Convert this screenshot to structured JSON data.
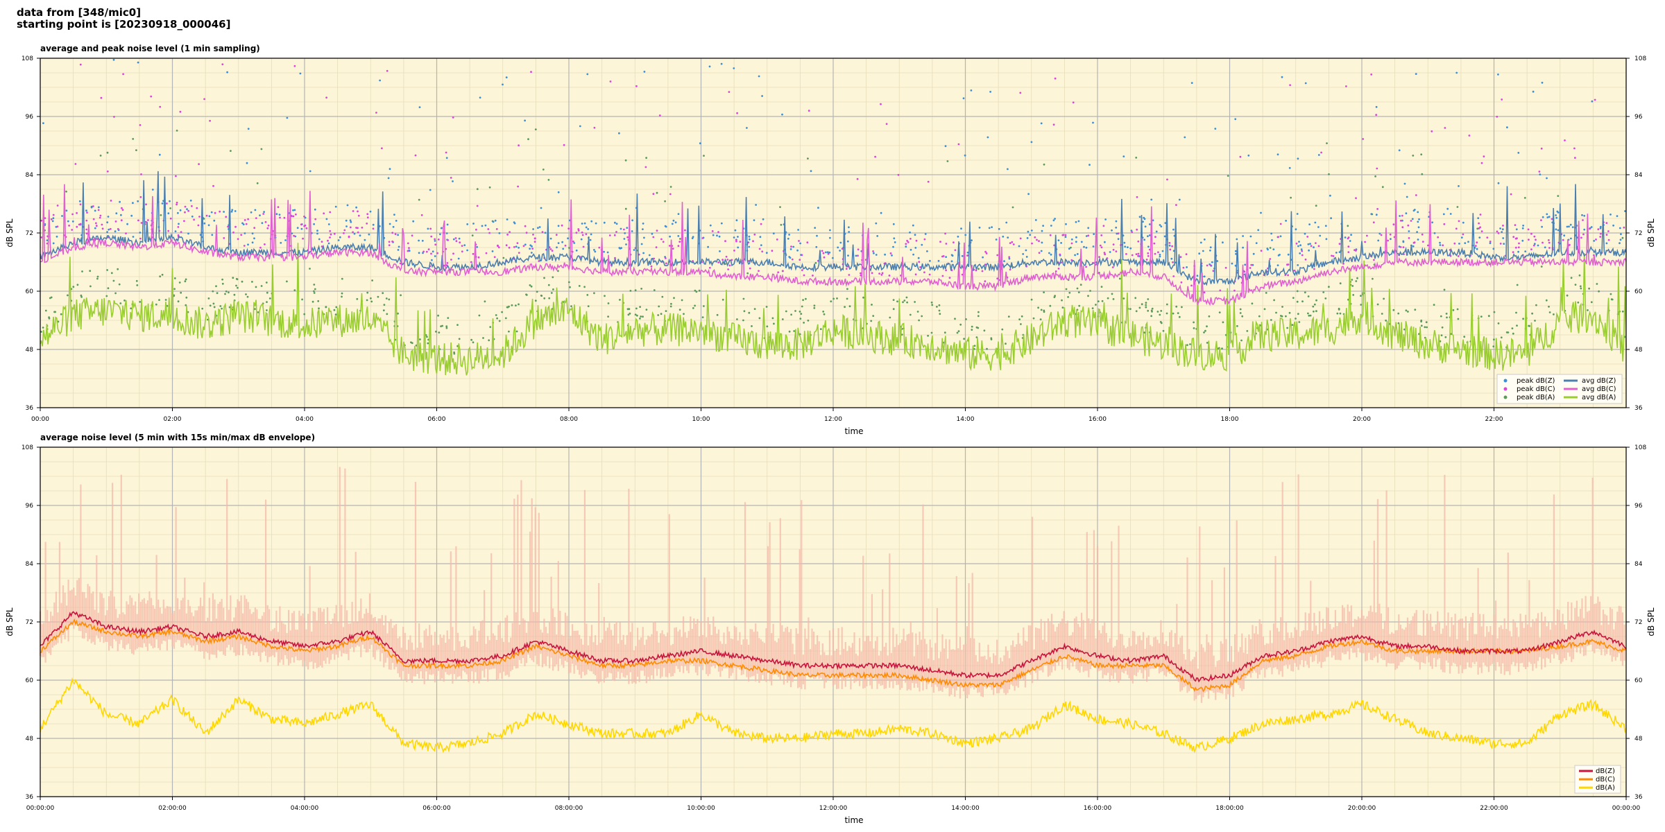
{
  "header": {
    "line1": "data from [348/mic0]",
    "line2": "starting point is [20230918_000046]"
  },
  "chart_data": [
    {
      "type": "line",
      "title": "average and peak noise level (1 min sampling)",
      "xlabel": "time",
      "ylabel": "dB SPL",
      "ylim": [
        36,
        108
      ],
      "yticks": [
        36,
        48,
        60,
        72,
        84,
        96,
        108
      ],
      "x_range_hours": [
        0,
        24
      ],
      "xtick_labels": [
        "00:00",
        "02:00",
        "04:00",
        "06:00",
        "08:00",
        "10:00",
        "12:00",
        "14:00",
        "16:00",
        "18:00",
        "20:00",
        "22:00"
      ],
      "grid": true,
      "legend_position": "lower-right",
      "colors": {
        "background": "#fdf5d8",
        "zline": "#4a7fb0",
        "cline": "#e060d0",
        "aline": "#9acd32",
        "peakz": "#3a8fd8",
        "peakc": "#dd44dd",
        "peaka": "#5a9a5a"
      },
      "legend": [
        "peak dB(Z)",
        "peak dB(C)",
        "peak dB(A)",
        "avg dB(Z)",
        "avg dB(C)",
        "avg dB(A)"
      ],
      "series_summary": {
        "hours": [
          0,
          0.5,
          1,
          1.5,
          2,
          2.5,
          3,
          3.5,
          4,
          4.5,
          5,
          5.5,
          6,
          6.5,
          7,
          7.5,
          8,
          8.5,
          9,
          9.5,
          10,
          10.5,
          11,
          11.5,
          12,
          12.5,
          13,
          13.5,
          14,
          14.5,
          15,
          15.5,
          16,
          16.5,
          17,
          17.5,
          18,
          18.5,
          19,
          19.5,
          20,
          20.5,
          21,
          21.5,
          22,
          22.5,
          23,
          23.5,
          24
        ],
        "avg_dBZ": [
          67,
          70,
          71,
          70,
          71,
          69,
          68,
          68,
          68,
          69,
          69,
          66,
          65,
          65,
          66,
          67,
          67,
          66,
          66,
          66,
          66,
          66,
          66,
          65,
          65,
          65,
          65,
          65,
          65,
          65,
          66,
          66,
          66,
          66,
          66,
          62,
          62,
          64,
          64,
          66,
          67,
          68,
          68,
          68,
          67,
          67,
          68,
          68,
          68
        ],
        "avg_dBC": [
          66,
          69,
          70,
          69,
          70,
          68,
          67,
          67,
          67,
          68,
          68,
          64,
          64,
          64,
          64,
          65,
          65,
          64,
          64,
          64,
          64,
          63,
          63,
          62,
          62,
          62,
          62,
          62,
          61,
          61,
          63,
          63,
          63,
          64,
          63,
          58,
          58,
          61,
          62,
          64,
          65,
          66,
          66,
          66,
          66,
          66,
          66,
          66,
          66
        ],
        "avg_dBA": [
          50,
          55,
          56,
          55,
          55,
          53,
          55,
          54,
          53,
          54,
          54,
          47,
          46,
          46,
          47,
          54,
          56,
          50,
          52,
          52,
          52,
          50,
          49,
          49,
          52,
          51,
          50,
          49,
          47,
          47,
          50,
          54,
          53,
          51,
          49,
          47,
          47,
          51,
          51,
          52,
          55,
          51,
          49,
          48,
          47,
          47,
          54,
          55,
          48
        ]
      }
    },
    {
      "type": "line",
      "title": "average noise level (5 min with 15s min/max dB envelope)",
      "xlabel": "time",
      "ylabel": "dB SPL",
      "ylim": [
        36,
        108
      ],
      "yticks": [
        36,
        48,
        60,
        72,
        84,
        96,
        108
      ],
      "x_range_hours": [
        0,
        24
      ],
      "xtick_labels": [
        "00:00:00",
        "02:00:00",
        "04:00:00",
        "06:00:00",
        "08:00:00",
        "10:00:00",
        "12:00:00",
        "14:00:00",
        "16:00:00",
        "18:00:00",
        "20:00:00",
        "22:00:00",
        "00:00:00"
      ],
      "grid": true,
      "legend_position": "lower-right",
      "colors": {
        "background": "#fdf5d8",
        "zline": "#c8143c",
        "cline": "#ff8c00",
        "aline": "#ffd700",
        "envelope": "#f4b8a8"
      },
      "legend": [
        "dB(Z)",
        "dB(C)",
        "dB(A)"
      ],
      "series_summary": {
        "hours": [
          0,
          0.5,
          1,
          1.5,
          2,
          2.5,
          3,
          3.5,
          4,
          4.5,
          5,
          5.5,
          6,
          6.5,
          7,
          7.5,
          8,
          8.5,
          9,
          9.5,
          10,
          10.5,
          11,
          11.5,
          12,
          12.5,
          13,
          13.5,
          14,
          14.5,
          15,
          15.5,
          16,
          16.5,
          17,
          17.5,
          18,
          18.5,
          19,
          19.5,
          20,
          20.5,
          21,
          21.5,
          22,
          22.5,
          23,
          23.5,
          24
        ],
        "dBZ": [
          67,
          74,
          71,
          70,
          71,
          69,
          70,
          68,
          67,
          68,
          70,
          64,
          64,
          64,
          65,
          68,
          66,
          64,
          64,
          65,
          66,
          65,
          64,
          63,
          63,
          63,
          63,
          62,
          61,
          61,
          64,
          67,
          65,
          64,
          65,
          60,
          61,
          65,
          66,
          68,
          69,
          67,
          67,
          66,
          66,
          66,
          68,
          70,
          67
        ],
        "dBC": [
          66,
          72,
          70,
          69,
          70,
          68,
          69,
          67,
          66,
          67,
          69,
          63,
          63,
          63,
          64,
          67,
          65,
          63,
          63,
          64,
          64,
          63,
          62,
          61,
          61,
          61,
          61,
          60,
          59,
          59,
          62,
          65,
          63,
          63,
          63,
          58,
          59,
          64,
          65,
          67,
          68,
          66,
          66,
          66,
          66,
          66,
          67,
          68,
          66
        ],
        "dBA": [
          50,
          60,
          53,
          51,
          56,
          49,
          56,
          52,
          51,
          53,
          55,
          47,
          46,
          47,
          49,
          53,
          51,
          49,
          49,
          49,
          53,
          49,
          48,
          48,
          49,
          49,
          50,
          49,
          47,
          48,
          50,
          55,
          52,
          51,
          49,
          46,
          48,
          51,
          52,
          53,
          55,
          52,
          49,
          48,
          47,
          47,
          53,
          55,
          50
        ]
      }
    }
  ]
}
